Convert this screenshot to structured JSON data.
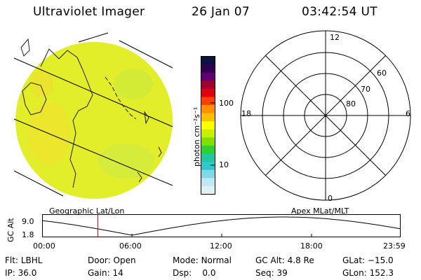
{
  "header": {
    "title": "Ultraviolet Imager",
    "date": "26 Jan 07",
    "time": "03:42:54 UT"
  },
  "colorbar": {
    "unit_label": "photon cm⁻²s⁻¹",
    "ticks": [
      "100",
      "10"
    ],
    "colors": [
      "#101040",
      "#300050",
      "#600070",
      "#a00030",
      "#e00010",
      "#ff4000",
      "#ff9000",
      "#ffc000",
      "#ffff00",
      "#c8f000",
      "#80e000",
      "#30d030",
      "#20c8a0",
      "#30c8d0",
      "#80d8e8",
      "#c0e8f0",
      "#e0f0f4"
    ]
  },
  "earth_panel": {
    "label": "Geographic Lat/Lon",
    "fill_color": "#e2ee2a"
  },
  "polar_panel": {
    "label": "Apex MLat/MLT",
    "mlt_labels": {
      "top": "12",
      "left": "18",
      "right": "6",
      "bottom": "0"
    },
    "mlat_labels": [
      "60",
      "70",
      "80"
    ]
  },
  "altitude_plot": {
    "ylabel": "GC Alt",
    "yticks": [
      "9.0",
      "1.8"
    ],
    "xticks": [
      "00:00",
      "06:00",
      "12:00",
      "18:00",
      "23:59"
    ],
    "marker_time": "03:42:54",
    "marker_color": "#d00000"
  },
  "info": {
    "row1": [
      {
        "key": "Flt:",
        "val": "LBHL"
      },
      {
        "key": "Door:",
        "val": "Open"
      },
      {
        "key": "Mode:",
        "val": "Normal"
      },
      {
        "key": "GC Alt:",
        "val": "4.8 Re"
      },
      {
        "key": "GLat:",
        "val": "−15.0"
      }
    ],
    "row2": [
      {
        "key": "IP:",
        "val": "36.0"
      },
      {
        "key": "Gain:",
        "val": "14"
      },
      {
        "key": "Dsp:",
        "val": "0.0"
      },
      {
        "key": "Seq:",
        "val": "39"
      },
      {
        "key": "GLon:",
        "val": "152.3"
      }
    ]
  }
}
